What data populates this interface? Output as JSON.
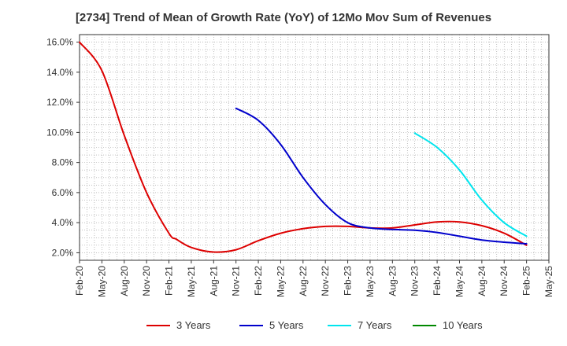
{
  "chart_data": {
    "type": "line",
    "title": "[2734]  Trend of Mean of Growth Rate (YoY) of 12Mo Mov Sum of Revenues",
    "xlabel": "",
    "ylabel": "",
    "ylim": [
      1.5,
      16.5
    ],
    "yticks": [
      2.0,
      4.0,
      6.0,
      8.0,
      10.0,
      12.0,
      14.0,
      16.0
    ],
    "ytick_labels": [
      "2.0%",
      "4.0%",
      "6.0%",
      "8.0%",
      "10.0%",
      "12.0%",
      "14.0%",
      "16.0%"
    ],
    "x_start": "Feb-20",
    "x_end": "May-25",
    "xtick_labels": [
      "Feb-20",
      "May-20",
      "Aug-20",
      "Nov-20",
      "Feb-21",
      "May-21",
      "Aug-21",
      "Nov-21",
      "Feb-22",
      "May-22",
      "Aug-22",
      "Nov-22",
      "Feb-23",
      "May-23",
      "Aug-23",
      "Nov-23",
      "Feb-24",
      "May-24",
      "Aug-24",
      "Nov-24",
      "Feb-25",
      "May-25"
    ],
    "grid": true,
    "legend_position": "bottom",
    "series": [
      {
        "name": "3 Years",
        "color": "#dd0000",
        "x": [
          "Feb-20",
          "May-20",
          "Aug-20",
          "Nov-20",
          "Feb-21",
          "Mar-21",
          "May-21",
          "Aug-21",
          "Nov-21",
          "Feb-22",
          "May-22",
          "Aug-22",
          "Nov-22",
          "Feb-23",
          "May-23",
          "Aug-23",
          "Nov-23",
          "Feb-24",
          "May-24",
          "Aug-24",
          "Nov-24",
          "Feb-25"
        ],
        "values": [
          16.0,
          14.1,
          9.8,
          6.0,
          3.3,
          2.9,
          2.35,
          2.05,
          2.2,
          2.8,
          3.3,
          3.6,
          3.75,
          3.75,
          3.65,
          3.65,
          3.85,
          4.05,
          4.05,
          3.8,
          3.3,
          2.5
        ]
      },
      {
        "name": "5 Years",
        "color": "#0000cc",
        "x": [
          "Nov-21",
          "Feb-22",
          "May-22",
          "Aug-22",
          "Nov-22",
          "Feb-23",
          "May-23",
          "Aug-23",
          "Nov-23",
          "Feb-24",
          "May-24",
          "Aug-24",
          "Nov-24",
          "Feb-25"
        ],
        "values": [
          11.6,
          10.8,
          9.2,
          7.0,
          5.2,
          4.0,
          3.65,
          3.55,
          3.5,
          3.35,
          3.1,
          2.85,
          2.7,
          2.6
        ]
      },
      {
        "name": "7 Years",
        "color": "#00e5ee",
        "x": [
          "Nov-23",
          "Feb-24",
          "May-24",
          "Aug-24",
          "Nov-24",
          "Feb-25"
        ],
        "values": [
          9.95,
          9.0,
          7.5,
          5.5,
          4.0,
          3.1
        ]
      },
      {
        "name": "10 Years",
        "color": "#008800",
        "x": [],
        "values": []
      }
    ]
  }
}
